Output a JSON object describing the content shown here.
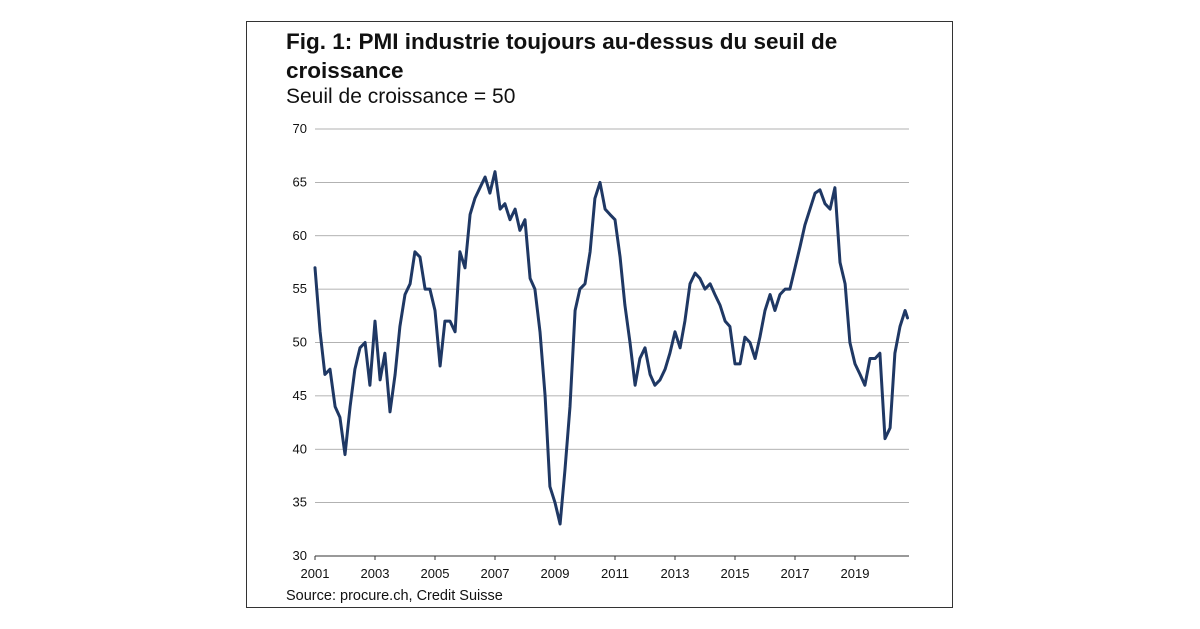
{
  "figure": {
    "title": "Fig. 1: PMI industrie toujours au-dessus du seuil de croissance",
    "subtitle": "Seuil de croissance = 50",
    "source": "Source: procure.ch, Credit Suisse"
  },
  "chart_data": {
    "type": "line",
    "title": "Fig. 1: PMI industrie toujours au-dessus du seuil de croissance",
    "subtitle": "Seuil de croissance = 50",
    "xlabel": "",
    "ylabel": "",
    "xlim": [
      2001,
      2020.8
    ],
    "ylim": [
      30,
      70
    ],
    "yticks": [
      30,
      35,
      40,
      45,
      50,
      55,
      60,
      65,
      70
    ],
    "xticks": [
      2001,
      2003,
      2005,
      2007,
      2009,
      2011,
      2013,
      2015,
      2017,
      2019
    ],
    "x_tick_labels": [
      "2001",
      "2003",
      "2005",
      "2007",
      "2009",
      "2011",
      "2013",
      "2015",
      "2017",
      "2019"
    ],
    "y_tick_labels": [
      "30",
      "35",
      "40",
      "45",
      "50",
      "55",
      "60",
      "65",
      "70"
    ],
    "grid": "horizontal",
    "line_color": "#1f3864",
    "series": [
      {
        "x": [
          2001.0,
          2001.17,
          2001.33,
          2001.5,
          2001.67,
          2001.83,
          2002.0,
          2002.17,
          2002.33,
          2002.5,
          2002.67,
          2002.83,
          2003.0,
          2003.17,
          2003.33,
          2003.5,
          2003.67,
          2003.83,
          2004.0,
          2004.17,
          2004.33,
          2004.5,
          2004.67,
          2004.83,
          2005.0,
          2005.17,
          2005.33,
          2005.5,
          2005.67,
          2005.83,
          2006.0,
          2006.17,
          2006.33,
          2006.5,
          2006.67,
          2006.83,
          2007.0,
          2007.17,
          2007.33,
          2007.5,
          2007.67,
          2007.83,
          2008.0,
          2008.17,
          2008.33,
          2008.5,
          2008.67,
          2008.83,
          2009.0,
          2009.17,
          2009.33,
          2009.5,
          2009.67,
          2009.83,
          2010.0,
          2010.17,
          2010.33,
          2010.5,
          2010.67,
          2010.83,
          2011.0,
          2011.17,
          2011.33,
          2011.5,
          2011.67,
          2011.83,
          2012.0,
          2012.17,
          2012.33,
          2012.5,
          2012.67,
          2012.83,
          2013.0,
          2013.17,
          2013.33,
          2013.5,
          2013.67,
          2013.83,
          2014.0,
          2014.17,
          2014.33,
          2014.5,
          2014.67,
          2014.83,
          2015.0,
          2015.17,
          2015.33,
          2015.5,
          2015.67,
          2015.83,
          2016.0,
          2016.17,
          2016.33,
          2016.5,
          2016.67,
          2016.83,
          2017.0,
          2017.17,
          2017.33,
          2017.5,
          2017.67,
          2017.83,
          2018.0,
          2018.17,
          2018.33,
          2018.5,
          2018.67,
          2018.83,
          2019.0,
          2019.17,
          2019.33,
          2019.5,
          2019.67,
          2019.83,
          2020.0,
          2020.17,
          2020.33,
          2020.5,
          2020.67,
          2020.75
        ],
        "values": [
          57.0,
          51.0,
          47.0,
          47.5,
          44.0,
          43.0,
          39.5,
          44.0,
          47.5,
          49.5,
          50.0,
          46.0,
          52.0,
          46.5,
          49.0,
          43.5,
          47.0,
          51.5,
          54.5,
          55.5,
          58.5,
          58.0,
          55.0,
          55.0,
          53.0,
          47.8,
          52.0,
          52.0,
          51.0,
          58.5,
          57.0,
          62.0,
          63.5,
          64.5,
          65.5,
          64.0,
          66.0,
          62.5,
          63.0,
          61.5,
          62.5,
          60.5,
          61.5,
          56.0,
          55.0,
          51.0,
          45.0,
          36.5,
          35.0,
          33.0,
          38.0,
          44.0,
          53.0,
          55.0,
          55.5,
          58.5,
          63.5,
          65.0,
          62.5,
          62.0,
          61.5,
          58.0,
          53.5,
          50.0,
          46.0,
          48.5,
          49.5,
          47.0,
          46.0,
          46.5,
          47.5,
          49.0,
          51.0,
          49.5,
          52.0,
          55.5,
          56.5,
          56.0,
          55.0,
          55.5,
          54.5,
          53.5,
          52.0,
          51.5,
          48.0,
          48.0,
          50.5,
          50.0,
          48.5,
          50.5,
          53.0,
          54.5,
          53.0,
          54.5,
          55.0,
          55.0,
          57.0,
          59.0,
          61.0,
          62.5,
          64.0,
          64.3,
          63.0,
          62.5,
          64.5,
          57.5,
          55.5,
          50.0,
          48.0,
          47.0,
          46.0,
          48.5,
          48.5,
          49.0,
          41.0,
          42.0,
          49.0,
          51.5,
          53.0,
          52.3
        ]
      }
    ]
  }
}
